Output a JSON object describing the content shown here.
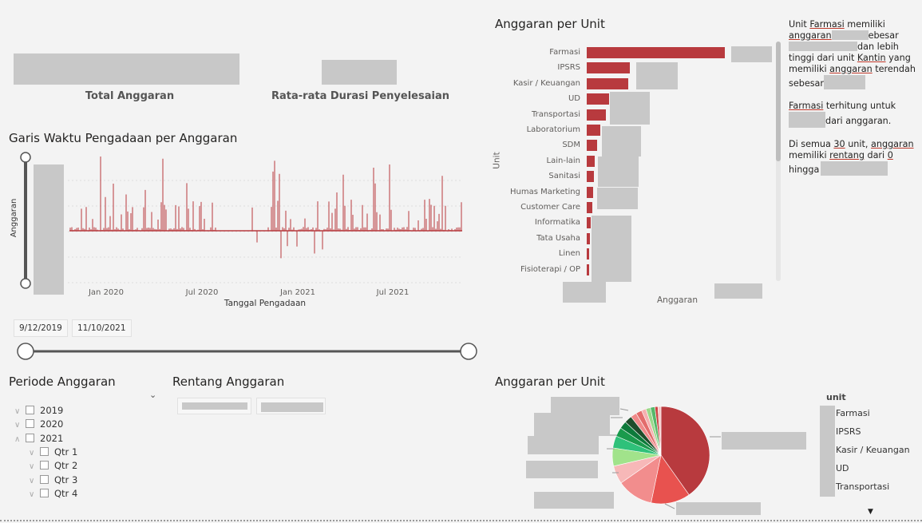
{
  "kpis": {
    "total_label": "Total Anggaran",
    "duration_label": "Rata-rata Durasi Penyelesaian"
  },
  "timeline": {
    "title": "Garis Waktu Pengadaan per Anggaran",
    "y_label": "Anggaran",
    "x_label": "Tanggal Pengadaan",
    "x_ticks": [
      "Jan 2020",
      "Jul 2020",
      "Jan 2021",
      "Jul 2021"
    ],
    "start_date": "9/12/2019",
    "end_date": "11/10/2021",
    "color": "#b83a3e"
  },
  "periode": {
    "title": "Periode Anggaran",
    "items": [
      {
        "label": "2019",
        "level": 0,
        "expanded": false
      },
      {
        "label": "2020",
        "level": 0,
        "expanded": false
      },
      {
        "label": "2021",
        "level": 0,
        "expanded": true
      },
      {
        "label": "Qtr 1",
        "level": 1,
        "expanded": false
      },
      {
        "label": "Qtr 2",
        "level": 1,
        "expanded": false
      },
      {
        "label": "Qtr 3",
        "level": 1,
        "expanded": false
      },
      {
        "label": "Qtr 4",
        "level": 1,
        "expanded": false
      }
    ]
  },
  "rentang": {
    "title": "Rentang Anggaran"
  },
  "bar_chart": {
    "title": "Anggaran per Unit",
    "y_label": "Unit",
    "x_label": "Anggaran",
    "color": "#b83a3e",
    "units": [
      "Farmasi",
      "IPSRS",
      "Kasir / Keuangan",
      "UD",
      "Transportasi",
      "Laboratorium",
      "SDM",
      "Lain-lain",
      "Sanitasi",
      "Humas Marketing",
      "Customer Care",
      "Informatika",
      "Tata Usaha",
      "Linen",
      "Fisioterapi / OP"
    ],
    "relative_values": [
      1.0,
      0.31,
      0.3,
      0.16,
      0.14,
      0.1,
      0.075,
      0.06,
      0.05,
      0.045,
      0.04,
      0.03,
      0.025,
      0.02,
      0.015
    ]
  },
  "insight": {
    "p1_a": "Unit ",
    "p1_unit": "Farmasi",
    "p1_b": " memiliki ",
    "p1_c": "anggaran",
    "p1_d": "ebesar",
    "p1_e": "dan lebih tinggi dari unit ",
    "p1_unit2": "Kantin",
    "p1_f": " yang memiliki ",
    "p1_g": "anggaran",
    "p1_h": " terendah sebesar",
    "p2_a": "Farmasi",
    "p2_b": " terhitung untuk",
    "p2_c": "dari anggaran.",
    "p3_a": "Di semua ",
    "p3_n": "30",
    "p3_b": " unit, ",
    "p3_c": "anggaran",
    "p3_d": " memiliki ",
    "p3_e": "rentang",
    "p3_f": " dari ",
    "p3_g": "0",
    "p3_h": "hingga"
  },
  "pie_chart": {
    "title": "Anggaran per Unit",
    "legend_title": "unit",
    "legend_items": [
      "Farmasi",
      "IPSRS",
      "Kasir / Keuangan",
      "UD",
      "Transportasi"
    ],
    "slices": [
      {
        "value": 40,
        "color": "#b83a3e"
      },
      {
        "value": 13,
        "color": "#e8524f"
      },
      {
        "value": 12,
        "color": "#f28d8d"
      },
      {
        "value": 6,
        "color": "#f7b8b8"
      },
      {
        "value": 6,
        "color": "#a1e38b"
      },
      {
        "value": 4,
        "color": "#2fc17a"
      },
      {
        "value": 3,
        "color": "#1a9a4c"
      },
      {
        "value": 2.5,
        "color": "#0d7a3a"
      },
      {
        "value": 2.5,
        "color": "#1e4d2b"
      },
      {
        "value": 2,
        "color": "#f08a8a"
      },
      {
        "value": 2,
        "color": "#e36c6c"
      },
      {
        "value": 1.5,
        "color": "#f5b0b0"
      },
      {
        "value": 1.5,
        "color": "#9bd88a"
      },
      {
        "value": 1.5,
        "color": "#55b86a"
      },
      {
        "value": 1,
        "color": "#c44"
      },
      {
        "value": 1,
        "color": "#f4c6c6"
      }
    ]
  }
}
